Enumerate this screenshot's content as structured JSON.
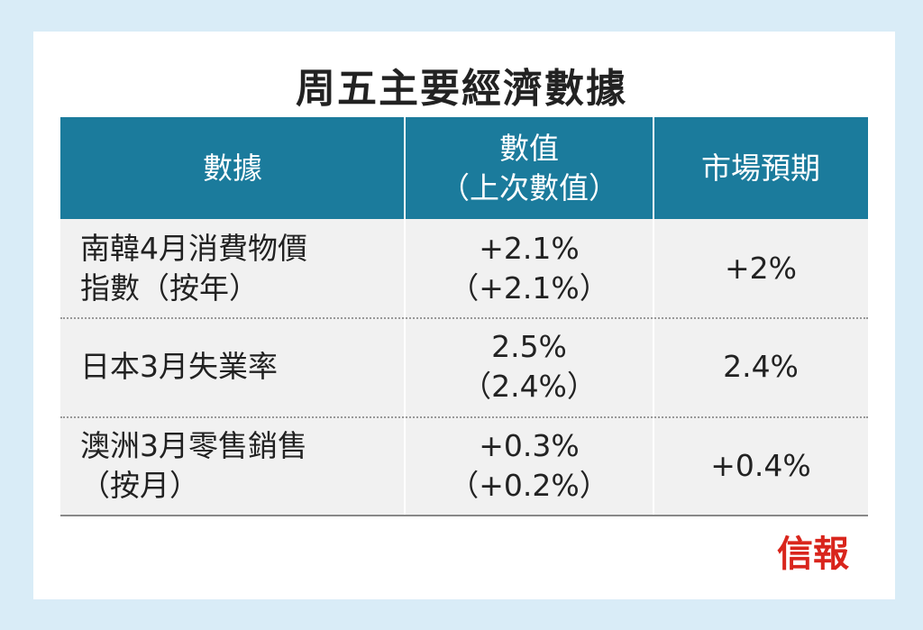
{
  "header": {
    "title": "周五主要經濟數據"
  },
  "table": {
    "columns": [
      [
        "數據"
      ],
      [
        "數值",
        "（上次數值）"
      ],
      [
        "市場預期"
      ]
    ],
    "rows": [
      [
        [
          "南韓4月消費物價",
          "指數（按年）"
        ],
        [
          "+2.1%",
          "（+2.1%）"
        ],
        [
          "+2%"
        ]
      ],
      [
        [
          "日本3月失業率"
        ],
        [
          "2.5%",
          "（2.4%）"
        ],
        [
          "2.4%"
        ]
      ],
      [
        [
          "澳洲3月零售銷售",
          "（按月）"
        ],
        [
          "+0.3%",
          "（+0.2%）"
        ],
        [
          "+0.4%"
        ]
      ]
    ]
  },
  "footer": {
    "logo": "信報"
  }
}
